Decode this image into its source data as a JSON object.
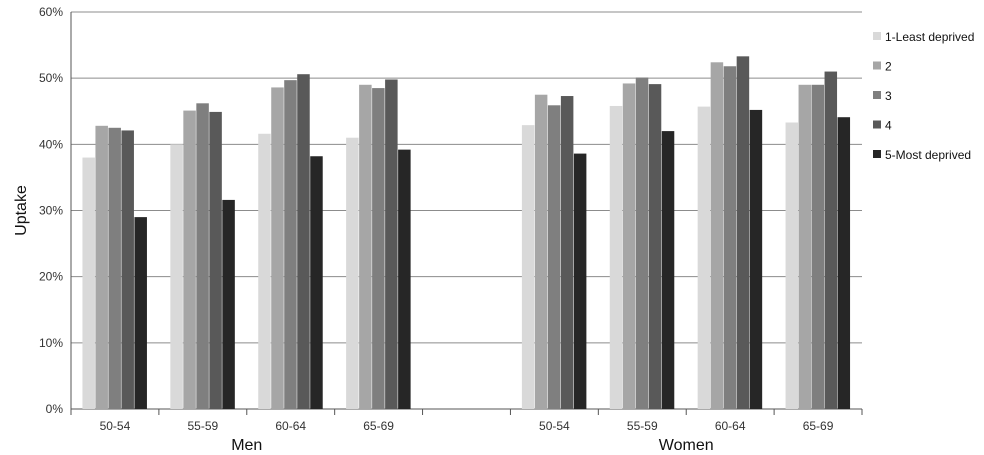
{
  "chart_data": {
    "type": "bar",
    "ylabel": "Uptake",
    "yticks": [
      "0%",
      "10%",
      "20%",
      "30%",
      "40%",
      "50%",
      "60%"
    ],
    "ylim": [
      0,
      60
    ],
    "grid": true,
    "legend_position": "right",
    "groups": [
      {
        "name": "Men",
        "categories": [
          "50-54",
          "55-59",
          "60-64",
          "65-69"
        ]
      },
      {
        "name": "Women",
        "categories": [
          "50-54",
          "55-59",
          "60-64",
          "65-69"
        ]
      }
    ],
    "series": [
      {
        "name": "1-Least deprived",
        "color": "#d9d9d9",
        "values": [
          [
            38.0,
            40.0,
            41.6,
            41.0
          ],
          [
            42.9,
            45.8,
            45.7,
            43.3
          ]
        ]
      },
      {
        "name": "2",
        "color": "#a6a6a6",
        "values": [
          [
            42.8,
            45.1,
            48.6,
            49.0
          ],
          [
            47.5,
            49.2,
            52.4,
            49.0
          ]
        ]
      },
      {
        "name": "3",
        "color": "#7f7f7f",
        "values": [
          [
            42.5,
            46.2,
            49.7,
            48.5
          ],
          [
            45.9,
            50.1,
            51.8,
            49.0
          ]
        ]
      },
      {
        "name": "4",
        "color": "#595959",
        "values": [
          [
            42.1,
            44.9,
            50.6,
            49.8
          ],
          [
            47.3,
            49.1,
            53.3,
            51.0
          ]
        ]
      },
      {
        "name": "5-Most deprived",
        "color": "#262626",
        "values": [
          [
            29.0,
            31.6,
            38.2,
            39.2
          ],
          [
            38.6,
            42.0,
            45.2,
            44.1
          ]
        ]
      }
    ]
  }
}
